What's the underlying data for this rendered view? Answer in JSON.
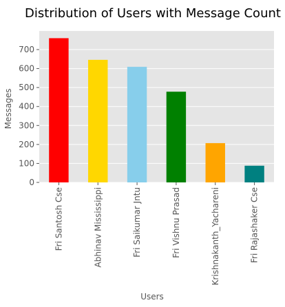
{
  "chart_data": {
    "type": "bar",
    "title": "Distribution of Users with Message Count",
    "xlabel": "Users",
    "ylabel": "Messages",
    "categories": [
      "Fri Santosh Cse",
      "Abhinav Mississippi",
      "Fri Saikumar Jntu",
      "Fri Vishnu Prasad",
      "Krishnakanth_Yachareni",
      "Fri Rajashaker Cse"
    ],
    "values": [
      760,
      646,
      609,
      478,
      207,
      88
    ],
    "colors": [
      "#ff0000",
      "#ffd700",
      "#87ceeb",
      "#008000",
      "#ffa500",
      "#008080"
    ],
    "ylim": [
      0,
      798
    ],
    "yticks": [
      0,
      100,
      200,
      300,
      400,
      500,
      600,
      700
    ],
    "grid": true,
    "legend": "none",
    "background": "#e5e5e5"
  }
}
